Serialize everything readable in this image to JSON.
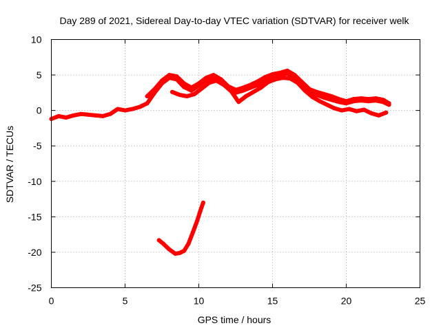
{
  "chart_data": {
    "type": "line",
    "title": "Day 289 of 2021, Sidereal Day-to-day VTEC variation (SDTVAR) for receiver welk",
    "xlabel": "GPS time / hours",
    "ylabel": "SDTVAR / TECUs",
    "xlim": [
      0,
      25
    ],
    "ylim": [
      -25,
      10
    ],
    "xticks": [
      0,
      5,
      10,
      15,
      20,
      25
    ],
    "xtick_labels": [
      "0",
      "5",
      "10",
      "15",
      "20",
      "25"
    ],
    "yticks": [
      10,
      5,
      0,
      -5,
      -10,
      -15,
      -20,
      -25
    ],
    "ytick_labels": [
      "10",
      "5",
      "0",
      "-5",
      "-10",
      "-15",
      "-20",
      "-25"
    ],
    "grid": true,
    "series_color": "#ff0000",
    "series": [
      {
        "name": "main",
        "x": [
          0,
          0.5,
          1,
          1.5,
          2,
          2.5,
          3,
          3.5,
          4,
          4.5,
          5,
          5.5,
          6,
          6.5,
          7,
          7.5,
          8,
          8.5,
          9,
          9.5,
          10,
          10.5,
          11,
          11.5,
          12,
          12.5,
          13,
          13.5,
          14,
          14.5,
          15,
          15.5,
          16,
          16.5,
          17,
          17.5,
          18,
          18.5,
          19,
          19.5,
          20,
          20.5,
          21,
          21.5,
          22,
          22.5,
          22.9
        ],
        "y": [
          -1.2,
          -0.8,
          -1.0,
          -0.7,
          -0.5,
          -0.6,
          -0.7,
          -0.8,
          -0.5,
          0.2,
          0.0,
          0.2,
          0.5,
          1.0,
          2.5,
          3.8,
          4.6,
          4.4,
          3.3,
          2.8,
          3.5,
          4.3,
          4.6,
          4.0,
          3.2,
          2.5,
          2.8,
          3.2,
          3.6,
          4.3,
          4.8,
          5.0,
          5.2,
          4.6,
          3.5,
          2.6,
          2.2,
          1.8,
          1.5,
          1.2,
          1.0,
          1.3,
          1.4,
          1.3,
          1.4,
          1.2,
          0.8
        ]
      },
      {
        "name": "upper-trace",
        "x": [
          6.5,
          7,
          7.5,
          8,
          8.5,
          9,
          9.5,
          10,
          10.5,
          11,
          11.5,
          12,
          12.5,
          13,
          13.5,
          14,
          14.5,
          15,
          15.5,
          16,
          16.5,
          17,
          17.5,
          18,
          18.5,
          19,
          19.5,
          20,
          20.5,
          21,
          21.5,
          22,
          22.5,
          22.9
        ],
        "y": [
          2.0,
          3.0,
          4.2,
          5.0,
          4.8,
          3.8,
          3.2,
          3.8,
          4.6,
          5.0,
          4.4,
          3.4,
          2.9,
          3.2,
          3.6,
          4.1,
          4.7,
          5.1,
          5.3,
          5.6,
          5.0,
          4.0,
          3.0,
          2.6,
          2.3,
          2.0,
          1.6,
          1.3,
          1.6,
          1.7,
          1.6,
          1.7,
          1.5,
          1.0
        ]
      },
      {
        "name": "lower-trace",
        "x": [
          8.2,
          8.7,
          9.2,
          9.7,
          10.2,
          10.7,
          11.2,
          11.7,
          12.2,
          12.7,
          13.2,
          13.7,
          14.2,
          14.7,
          15.2,
          15.7,
          16.2,
          16.7,
          17.2,
          17.7,
          18.2,
          18.7,
          19.2,
          19.7,
          20.2,
          20.7,
          21.2,
          21.7,
          22.2,
          22.7
        ],
        "y": [
          2.6,
          2.2,
          2.0,
          2.3,
          3.1,
          3.9,
          4.2,
          3.6,
          2.7,
          1.2,
          2.0,
          2.6,
          3.2,
          4.0,
          4.4,
          4.6,
          4.5,
          3.9,
          2.8,
          1.9,
          1.3,
          0.8,
          0.3,
          0.0,
          0.2,
          -0.1,
          0.1,
          -0.4,
          -0.7,
          -0.3
        ]
      },
      {
        "name": "negative-segment",
        "x": [
          7.3,
          7.6,
          8.0,
          8.4,
          8.7,
          9.0,
          9.3,
          9.6,
          9.9,
          10.1,
          10.3
        ],
        "y": [
          -18.3,
          -18.8,
          -19.6,
          -20.2,
          -20.1,
          -19.8,
          -18.8,
          -17.2,
          -15.5,
          -14.2,
          -13.0
        ]
      }
    ]
  }
}
